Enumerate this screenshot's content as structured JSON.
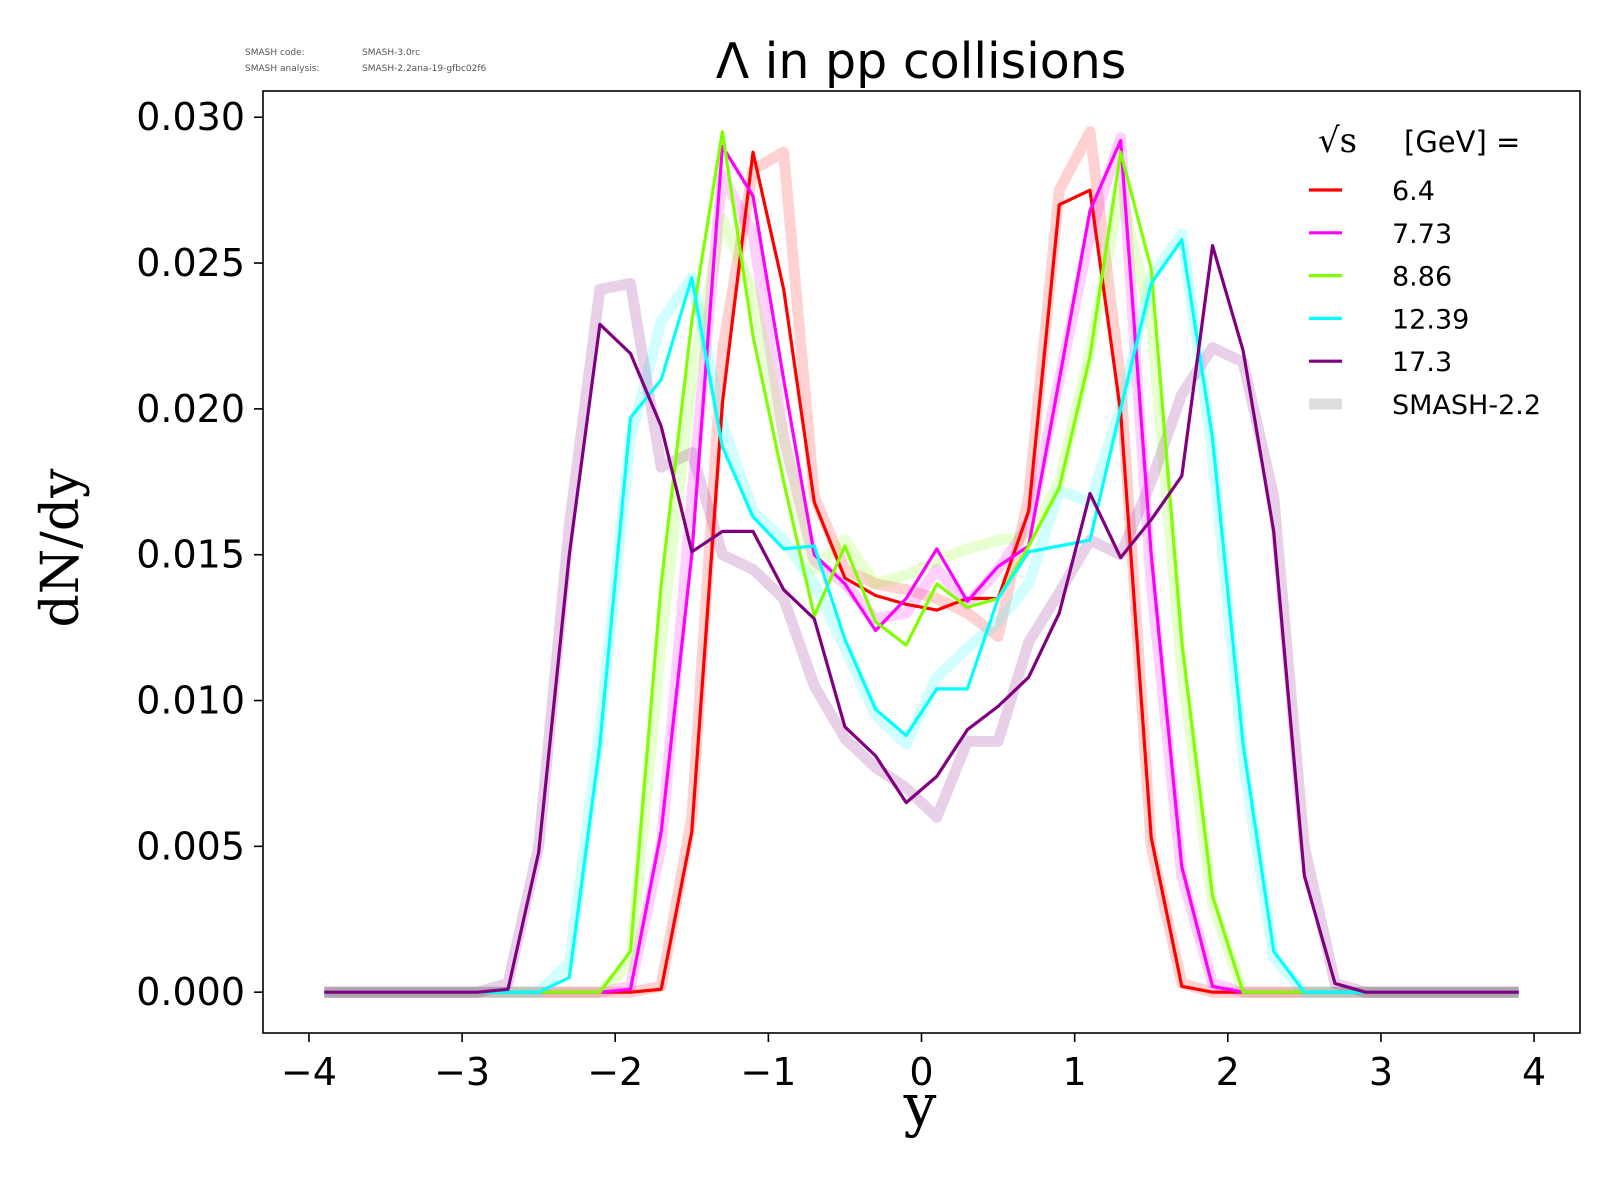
{
  "meta": {
    "code_label": "SMASH code:",
    "code_value": "SMASH-3.0rc",
    "analysis_label": "SMASH analysis:",
    "analysis_value": "SMASH-2.2ana-19-gfbc02f6"
  },
  "chart_data": {
    "type": "line",
    "title": "Λ in pp collisions",
    "xlabel": "y",
    "ylabel": "dN/dy",
    "xlim": [
      -4.3,
      4.3
    ],
    "ylim": [
      -0.0014,
      0.0309
    ],
    "xticks": [
      -4,
      -3,
      -2,
      -1,
      0,
      1,
      2,
      3,
      4
    ],
    "xtick_labels": [
      "−4",
      "−3",
      "−2",
      "−1",
      "0",
      "1",
      "2",
      "3",
      "4"
    ],
    "yticks": [
      0,
      0.005,
      0.01,
      0.015,
      0.02,
      0.025,
      0.03
    ],
    "ytick_labels": [
      "0.000",
      "0.005",
      "0.010",
      "0.015",
      "0.020",
      "0.025",
      "0.030"
    ],
    "grid": false,
    "legend": {
      "placement": "top-right",
      "title_prefix": "√s",
      "title_suffix": "[GeV] =",
      "reference_label": "SMASH-2.2",
      "reference_color": "#dddddd"
    },
    "x": [
      -3.9,
      -3.7,
      -3.5,
      -3.3,
      -3.1,
      -2.9,
      -2.7,
      -2.5,
      -2.3,
      -2.1,
      -1.9,
      -1.7,
      -1.5,
      -1.3,
      -1.1,
      -0.9,
      -0.7,
      -0.5,
      -0.3,
      -0.1,
      0.1,
      0.3,
      0.5,
      0.7,
      0.9,
      1.1,
      1.3,
      1.5,
      1.7,
      1.9,
      2.1,
      2.3,
      2.5,
      2.7,
      2.9,
      3.1,
      3.3,
      3.5,
      3.7,
      3.9
    ],
    "series": [
      {
        "name": "6.4",
        "color": "#ff0000",
        "values": [
          0,
          0,
          0,
          0,
          0,
          0,
          0,
          0,
          0,
          0,
          0,
          0.0001,
          0.0055,
          0.0202,
          0.0288,
          0.0241,
          0.0168,
          0.0142,
          0.0136,
          0.0133,
          0.0131,
          0.0135,
          0.0135,
          0.0165,
          0.027,
          0.0275,
          0.0199,
          0.0053,
          0.0002,
          0,
          0,
          0,
          0,
          0,
          0,
          0,
          0,
          0,
          0,
          0
        ],
        "reference": [
          0,
          0,
          0,
          0,
          0,
          0,
          0,
          0,
          0,
          0,
          0,
          0.0002,
          0.006,
          0.022,
          0.0282,
          0.0288,
          0.017,
          0.0145,
          0.014,
          0.0138,
          0.0135,
          0.013,
          0.0122,
          0.017,
          0.0275,
          0.0295,
          0.021,
          0.005,
          0.0003,
          0,
          0,
          0,
          0,
          0,
          0,
          0,
          0,
          0,
          0,
          0
        ]
      },
      {
        "name": "7.73",
        "color": "#ff00ff",
        "values": [
          0,
          0,
          0,
          0,
          0,
          0,
          0,
          0,
          0,
          0,
          0.0001,
          0.0055,
          0.015,
          0.029,
          0.0273,
          0.021,
          0.015,
          0.014,
          0.0124,
          0.0135,
          0.0152,
          0.0134,
          0.0146,
          0.0153,
          0.021,
          0.0268,
          0.0292,
          0.015,
          0.0043,
          0.0002,
          0,
          0,
          0,
          0,
          0,
          0,
          0,
          0,
          0,
          0
        ],
        "reference": [
          0,
          0,
          0,
          0,
          0,
          0,
          0,
          0,
          0,
          0,
          0.0002,
          0.005,
          0.017,
          0.028,
          0.026,
          0.019,
          0.0148,
          0.014,
          0.0128,
          0.013,
          0.0145,
          0.0133,
          0.0145,
          0.016,
          0.021,
          0.026,
          0.0293,
          0.014,
          0.004,
          0.0003,
          0,
          0,
          0,
          0,
          0,
          0,
          0,
          0,
          0,
          0
        ]
      },
      {
        "name": "8.86",
        "color": "#7fff00",
        "values": [
          0,
          0,
          0,
          0,
          0,
          0,
          0,
          0,
          0,
          0,
          0.0014,
          0.014,
          0.023,
          0.0295,
          0.0225,
          0.0175,
          0.0129,
          0.0153,
          0.0127,
          0.0119,
          0.014,
          0.0132,
          0.0135,
          0.0153,
          0.0173,
          0.0218,
          0.0288,
          0.0248,
          0.012,
          0.0033,
          0,
          0,
          0,
          0,
          0,
          0,
          0,
          0,
          0,
          0
        ],
        "reference": [
          0,
          0,
          0,
          0,
          0,
          0,
          0,
          0,
          0,
          0,
          0.001,
          0.012,
          0.021,
          0.0265,
          0.024,
          0.019,
          0.0145,
          0.0155,
          0.014,
          0.0143,
          0.0148,
          0.0152,
          0.0155,
          0.0156,
          0.0175,
          0.022,
          0.0275,
          0.023,
          0.011,
          0.003,
          0,
          0,
          0,
          0,
          0,
          0,
          0,
          0,
          0,
          0
        ]
      },
      {
        "name": "12.39",
        "color": "#00ffff",
        "values": [
          0,
          0,
          0,
          0,
          0,
          0,
          0,
          0,
          0.0005,
          0.0085,
          0.0197,
          0.021,
          0.0245,
          0.0187,
          0.0163,
          0.0152,
          0.0153,
          0.0121,
          0.0097,
          0.0088,
          0.0104,
          0.0104,
          0.0135,
          0.0151,
          0.0153,
          0.0155,
          0.02,
          0.0243,
          0.0258,
          0.019,
          0.0085,
          0.0014,
          0,
          0,
          0,
          0,
          0,
          0,
          0,
          0
        ],
        "reference": [
          0,
          0,
          0,
          0,
          0,
          0,
          0,
          0,
          0.001,
          0.009,
          0.019,
          0.023,
          0.0245,
          0.0195,
          0.0165,
          0.0155,
          0.014,
          0.0118,
          0.0095,
          0.0085,
          0.0108,
          0.0118,
          0.0127,
          0.014,
          0.0172,
          0.0168,
          0.02,
          0.0245,
          0.026,
          0.0185,
          0.008,
          0.0012,
          0,
          0,
          0,
          0,
          0,
          0,
          0,
          0
        ]
      },
      {
        "name": "17.3",
        "color": "#800080",
        "values": [
          0,
          0,
          0,
          0,
          0,
          0,
          0.0001,
          0.0048,
          0.015,
          0.0229,
          0.0219,
          0.0194,
          0.0151,
          0.0158,
          0.0158,
          0.0138,
          0.0128,
          0.0091,
          0.0081,
          0.0065,
          0.0074,
          0.009,
          0.0098,
          0.0108,
          0.013,
          0.0171,
          0.0149,
          0.0162,
          0.0177,
          0.0256,
          0.022,
          0.0158,
          0.004,
          0.0003,
          0,
          0,
          0,
          0,
          0,
          0
        ],
        "reference": [
          0,
          0,
          0,
          0,
          0,
          0,
          0.0003,
          0.005,
          0.016,
          0.0241,
          0.0243,
          0.018,
          0.0185,
          0.015,
          0.0145,
          0.0135,
          0.0105,
          0.0087,
          0.0077,
          0.007,
          0.006,
          0.0086,
          0.0086,
          0.012,
          0.0137,
          0.0155,
          0.015,
          0.0175,
          0.0205,
          0.0221,
          0.0216,
          0.017,
          0.005,
          0.0003,
          0,
          0,
          0,
          0,
          0,
          0
        ]
      }
    ]
  }
}
